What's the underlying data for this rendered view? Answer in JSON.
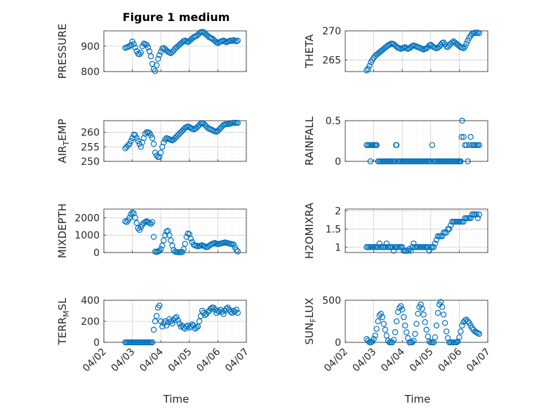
{
  "figure_title": "Figure 1 medium",
  "x_axis_label": "Time",
  "x_tick_labels": [
    "04/02",
    "04/03",
    "04/04",
    "04/05",
    "04/06",
    "04/07"
  ],
  "colors": {
    "marker": "#0072BD",
    "axis": "#262626",
    "grid": "#cfcfcf"
  },
  "chart_data": [
    {
      "type": "scatter",
      "ylabel": "PRESSURE",
      "ylim": [
        800,
        960
      ],
      "yticks": [
        800,
        900
      ],
      "xlim": [
        2,
        7
      ],
      "grid": true,
      "x": [
        2.75,
        2.8,
        2.85,
        2.9,
        2.95,
        3.0,
        3.05,
        3.1,
        3.15,
        3.2,
        3.25,
        3.3,
        3.35,
        3.4,
        3.45,
        3.5,
        3.55,
        3.6,
        3.65,
        3.7,
        3.75,
        3.8,
        3.85,
        3.9,
        3.95,
        4.0,
        4.05,
        4.1,
        4.15,
        4.2,
        4.25,
        4.3,
        4.35,
        4.4,
        4.45,
        4.5,
        4.55,
        4.6,
        4.65,
        4.7,
        4.75,
        4.8,
        4.85,
        4.9,
        4.95,
        5.0,
        5.05,
        5.1,
        5.15,
        5.2,
        5.25,
        5.3,
        5.35,
        5.4,
        5.45,
        5.5,
        5.55,
        5.6,
        5.65,
        5.7,
        5.75,
        5.8,
        5.85,
        5.9,
        5.95,
        6.0,
        6.05,
        6.1,
        6.15,
        6.2,
        6.25,
        6.3,
        6.35,
        6.4,
        6.45,
        6.5,
        6.55,
        6.6,
        6.65,
        6.7
      ],
      "y": [
        893,
        895,
        897,
        900,
        905,
        918,
        908,
        895,
        880,
        870,
        868,
        875,
        900,
        910,
        908,
        905,
        895,
        880,
        860,
        830,
        810,
        802,
        825,
        850,
        865,
        878,
        890,
        893,
        888,
        883,
        878,
        875,
        872,
        877,
        883,
        890,
        895,
        900,
        905,
        910,
        915,
        920,
        922,
        918,
        916,
        920,
        925,
        930,
        935,
        938,
        940,
        945,
        950,
        955,
        956,
        955,
        950,
        945,
        940,
        935,
        932,
        930,
        925,
        920,
        915,
        912,
        915,
        918,
        920,
        922,
        918,
        915,
        918,
        920,
        922,
        920,
        924,
        921,
        919,
        922
      ]
    },
    {
      "type": "scatter",
      "ylabel": "THETA",
      "ylim": [
        263,
        270
      ],
      "yticks": [
        265,
        270
      ],
      "xlim": [
        2,
        7
      ],
      "grid": true,
      "x": [
        2.75,
        2.8,
        2.85,
        2.9,
        2.95,
        3.0,
        3.05,
        3.1,
        3.15,
        3.2,
        3.25,
        3.3,
        3.35,
        3.4,
        3.45,
        3.5,
        3.55,
        3.6,
        3.65,
        3.7,
        3.75,
        3.8,
        3.85,
        3.9,
        3.95,
        4.0,
        4.05,
        4.1,
        4.15,
        4.2,
        4.25,
        4.3,
        4.35,
        4.4,
        4.45,
        4.5,
        4.55,
        4.6,
        4.65,
        4.7,
        4.75,
        4.8,
        4.85,
        4.9,
        4.95,
        5.0,
        5.05,
        5.1,
        5.15,
        5.2,
        5.25,
        5.3,
        5.35,
        5.4,
        5.45,
        5.5,
        5.55,
        5.6,
        5.65,
        5.7,
        5.75,
        5.8,
        5.85,
        5.9,
        5.95,
        6.0,
        6.05,
        6.1,
        6.15,
        6.2,
        6.25,
        6.3,
        6.35,
        6.4,
        6.45,
        6.5,
        6.55,
        6.6,
        6.65,
        6.7
      ],
      "y": [
        263.2,
        263.5,
        264,
        264.6,
        265,
        265.4,
        265.7,
        265.9,
        266.1,
        266.3,
        266.5,
        266.7,
        266.9,
        267.1,
        267.3,
        267.5,
        267.6,
        267.8,
        267.8,
        267.7,
        267.5,
        267.3,
        267.1,
        267.0,
        266.9,
        267.0,
        267.1,
        267.2,
        267.0,
        266.9,
        267.0,
        267.2,
        267.4,
        267.5,
        267.4,
        267.3,
        267.2,
        267.1,
        267.0,
        266.9,
        266.8,
        266.9,
        267.0,
        267.2,
        267.5,
        267.6,
        267.4,
        267.2,
        267.1,
        267.0,
        267.1,
        267.3,
        267.6,
        267.9,
        268.0,
        267.7,
        267.3,
        267.2,
        267.5,
        267.8,
        268.0,
        268.2,
        268.0,
        267.8,
        267.6,
        267.4,
        267.2,
        267.1,
        267.0,
        267.3,
        267.8,
        268.3,
        268.8,
        269.2,
        269.5,
        269.6,
        269.7,
        269.6,
        269.7,
        269.6
      ]
    },
    {
      "type": "scatter",
      "ylabel": "AIR_TEMP",
      "ylim": [
        250,
        264
      ],
      "yticks": [
        250,
        255,
        260
      ],
      "xlim": [
        2,
        7
      ],
      "grid": true,
      "x": [
        2.75,
        2.8,
        2.85,
        2.9,
        2.95,
        3.0,
        3.05,
        3.1,
        3.15,
        3.2,
        3.25,
        3.3,
        3.35,
        3.4,
        3.45,
        3.5,
        3.55,
        3.6,
        3.65,
        3.7,
        3.75,
        3.8,
        3.85,
        3.9,
        3.95,
        4.0,
        4.05,
        4.1,
        4.15,
        4.2,
        4.25,
        4.3,
        4.35,
        4.4,
        4.45,
        4.5,
        4.55,
        4.6,
        4.65,
        4.7,
        4.75,
        4.8,
        4.85,
        4.9,
        4.95,
        5.0,
        5.05,
        5.1,
        5.15,
        5.2,
        5.25,
        5.3,
        5.35,
        5.4,
        5.45,
        5.5,
        5.55,
        5.6,
        5.65,
        5.7,
        5.75,
        5.8,
        5.85,
        5.9,
        5.95,
        6.0,
        6.05,
        6.1,
        6.15,
        6.2,
        6.25,
        6.3,
        6.35,
        6.4,
        6.45,
        6.5,
        6.55,
        6.6,
        6.65,
        6.7
      ],
      "y": [
        254.5,
        255,
        255.5,
        256,
        257,
        258,
        259.2,
        259,
        258,
        257,
        256,
        255,
        256.5,
        258,
        259.5,
        260,
        260,
        259.8,
        259,
        258,
        256,
        253,
        252,
        251.5,
        251.5,
        253,
        255,
        256.5,
        257.5,
        258,
        257.8,
        257.6,
        257.4,
        257.2,
        257.5,
        258,
        258.5,
        259,
        259.5,
        260,
        260.5,
        261,
        261.5,
        261.8,
        262,
        261.8,
        261.5,
        261.2,
        261,
        261.2,
        261.5,
        262,
        262.5,
        263,
        263.2,
        263,
        262.5,
        262,
        261.5,
        261.2,
        261,
        260.8,
        260.5,
        260.3,
        260.2,
        260.5,
        261,
        261.5,
        262,
        262.5,
        262.7,
        262.8,
        262.8,
        262.9,
        263,
        263.2,
        263.3,
        263.2,
        263.3,
        263.2
      ]
    },
    {
      "type": "scatter",
      "ylabel": "RAINFALL",
      "ylim": [
        0,
        0.5
      ],
      "yticks": [
        0,
        0.5
      ],
      "xlim": [
        2,
        7
      ],
      "grid": true,
      "x": [
        2.75,
        2.8,
        2.85,
        2.88,
        2.9,
        2.95,
        3.0,
        3.05,
        3.08,
        3.1,
        3.15,
        3.2,
        3.25,
        3.3,
        3.35,
        3.4,
        3.45,
        3.5,
        3.55,
        3.6,
        3.65,
        3.7,
        3.75,
        3.78,
        3.8,
        3.85,
        3.9,
        3.95,
        4.0,
        4.05,
        4.1,
        4.15,
        4.2,
        4.25,
        4.3,
        4.35,
        4.4,
        4.45,
        4.5,
        4.55,
        4.6,
        4.65,
        4.7,
        4.75,
        4.8,
        4.85,
        4.9,
        4.95,
        5.0,
        5.05,
        5.1,
        5.15,
        5.2,
        5.25,
        5.3,
        5.35,
        5.4,
        5.45,
        5.5,
        5.55,
        5.6,
        5.65,
        5.7,
        5.75,
        5.8,
        5.85,
        5.9,
        5.95,
        6.0,
        6.02,
        6.05,
        6.08,
        6.1,
        6.15,
        6.2,
        6.25,
        6.3,
        6.35,
        6.4,
        6.45,
        6.5,
        6.55,
        6.6,
        6.65,
        6.7
      ],
      "y": [
        0.2,
        0.2,
        0.2,
        0.0,
        0.2,
        0.2,
        0.2,
        0.2,
        0.2,
        0.2,
        0.0,
        0.0,
        0.0,
        0.0,
        0.0,
        0.0,
        0.0,
        0.0,
        0.0,
        0.0,
        0.0,
        0.0,
        0.0,
        0.2,
        0.2,
        0.0,
        0.0,
        0.0,
        0.0,
        0.0,
        0.0,
        0.0,
        0.0,
        0.0,
        0.0,
        0.0,
        0.0,
        0.0,
        0.0,
        0.0,
        0.0,
        0.0,
        0.0,
        0.0,
        0.0,
        0.0,
        0.0,
        0.0,
        0.0,
        0.2,
        0.0,
        0.0,
        0.0,
        0.0,
        0.0,
        0.0,
        0.0,
        0.0,
        0.0,
        0.0,
        0.0,
        0.0,
        0.0,
        0.0,
        0.0,
        0.0,
        0.0,
        0.0,
        0.0,
        0.0,
        0.0,
        0.3,
        0.5,
        0.3,
        0.2,
        0.2,
        0.0,
        0.2,
        0.3,
        0.2,
        0.2,
        0.2,
        0.2,
        0.2,
        0.2
      ]
    },
    {
      "type": "scatter",
      "ylabel": "MIXDEPTH",
      "ylim": [
        0,
        2500
      ],
      "yticks": [
        0,
        1000,
        2000
      ],
      "xlim": [
        2,
        7
      ],
      "grid": true,
      "x": [
        2.75,
        2.8,
        2.85,
        2.9,
        2.95,
        3.0,
        3.05,
        3.1,
        3.15,
        3.2,
        3.25,
        3.3,
        3.35,
        3.4,
        3.45,
        3.5,
        3.55,
        3.6,
        3.65,
        3.7,
        3.75,
        3.8,
        3.85,
        3.9,
        3.95,
        4.0,
        4.05,
        4.1,
        4.15,
        4.2,
        4.25,
        4.3,
        4.35,
        4.4,
        4.45,
        4.5,
        4.55,
        4.6,
        4.65,
        4.7,
        4.75,
        4.8,
        4.85,
        4.9,
        4.95,
        5.0,
        5.05,
        5.1,
        5.15,
        5.2,
        5.25,
        5.3,
        5.35,
        5.4,
        5.45,
        5.5,
        5.55,
        5.6,
        5.65,
        5.7,
        5.75,
        5.8,
        5.85,
        5.9,
        5.95,
        6.0,
        6.05,
        6.1,
        6.15,
        6.2,
        6.25,
        6.3,
        6.35,
        6.4,
        6.45,
        6.5,
        6.55,
        6.6,
        6.65,
        6.7
      ],
      "y": [
        1800,
        1750,
        1850,
        2000,
        2200,
        2300,
        2250,
        2000,
        1700,
        1400,
        1300,
        1450,
        1600,
        1700,
        1750,
        1800,
        1750,
        1700,
        1650,
        1750,
        900,
        50,
        30,
        60,
        100,
        200,
        400,
        700,
        1000,
        1200,
        1250,
        1000,
        700,
        400,
        150,
        50,
        30,
        20,
        20,
        20,
        30,
        200,
        500,
        900,
        1100,
        1050,
        800,
        600,
        450,
        400,
        400,
        350,
        380,
        400,
        420,
        380,
        350,
        300,
        330,
        400,
        450,
        500,
        520,
        550,
        500,
        480,
        500,
        520,
        540,
        560,
        580,
        560,
        540,
        520,
        500,
        480,
        460,
        300,
        150,
        60
      ]
    },
    {
      "type": "scatter",
      "ylabel": "H2OMIXRA",
      "ylim": [
        0.85,
        2.05
      ],
      "yticks": [
        1,
        1.5,
        2
      ],
      "xlim": [
        2,
        7
      ],
      "grid": true,
      "x": [
        2.75,
        2.8,
        2.85,
        2.9,
        2.95,
        3.0,
        3.05,
        3.1,
        3.15,
        3.2,
        3.25,
        3.3,
        3.35,
        3.4,
        3.45,
        3.5,
        3.55,
        3.6,
        3.65,
        3.7,
        3.75,
        3.8,
        3.85,
        3.9,
        3.95,
        4.0,
        4.05,
        4.1,
        4.15,
        4.2,
        4.25,
        4.3,
        4.35,
        4.4,
        4.45,
        4.5,
        4.55,
        4.6,
        4.65,
        4.7,
        4.75,
        4.8,
        4.85,
        4.9,
        4.95,
        5.0,
        5.05,
        5.1,
        5.15,
        5.2,
        5.25,
        5.3,
        5.35,
        5.4,
        5.45,
        5.5,
        5.55,
        5.6,
        5.65,
        5.7,
        5.75,
        5.8,
        5.85,
        5.9,
        5.95,
        6.0,
        6.05,
        6.1,
        6.15,
        6.2,
        6.25,
        6.3,
        6.35,
        6.4,
        6.45,
        6.5,
        6.55,
        6.6,
        6.65,
        6.7
      ],
      "y": [
        1.0,
        1.0,
        1.0,
        1.0,
        1.0,
        1.0,
        1.0,
        1.0,
        1.0,
        1.1,
        1.0,
        1.0,
        1.0,
        1.0,
        1.1,
        1.0,
        1.0,
        1.0,
        1.0,
        0.9,
        1.0,
        1.0,
        1.0,
        1.0,
        1.0,
        1.0,
        0.9,
        0.9,
        0.9,
        0.9,
        0.95,
        0.9,
        1.0,
        1.1,
        1.0,
        1.0,
        1.0,
        1.0,
        1.0,
        1.0,
        1.0,
        1.0,
        1.0,
        1.0,
        0.9,
        1.0,
        1.0,
        1.0,
        1.1,
        1.2,
        1.3,
        1.3,
        1.3,
        1.3,
        1.4,
        1.4,
        1.4,
        1.5,
        1.5,
        1.6,
        1.7,
        1.7,
        1.7,
        1.7,
        1.7,
        1.7,
        1.7,
        1.7,
        1.7,
        1.8,
        1.8,
        1.8,
        1.8,
        1.8,
        1.9,
        1.9,
        1.9,
        1.9,
        1.8,
        1.9
      ]
    },
    {
      "type": "scatter",
      "ylabel": "TERR_MSL",
      "ylim": [
        0,
        400
      ],
      "yticks": [
        0,
        200,
        400
      ],
      "xlim": [
        2,
        7
      ],
      "grid": true,
      "x": [
        2.75,
        2.8,
        2.85,
        2.9,
        2.95,
        3.0,
        3.05,
        3.1,
        3.15,
        3.2,
        3.25,
        3.3,
        3.35,
        3.4,
        3.45,
        3.5,
        3.55,
        3.6,
        3.65,
        3.7,
        3.75,
        3.8,
        3.85,
        3.9,
        3.95,
        4.0,
        4.05,
        4.1,
        4.15,
        4.2,
        4.25,
        4.3,
        4.35,
        4.4,
        4.45,
        4.5,
        4.55,
        4.6,
        4.65,
        4.7,
        4.75,
        4.8,
        4.85,
        4.9,
        4.95,
        5.0,
        5.05,
        5.1,
        5.15,
        5.2,
        5.25,
        5.3,
        5.35,
        5.4,
        5.45,
        5.5,
        5.55,
        5.6,
        5.65,
        5.7,
        5.75,
        5.8,
        5.85,
        5.9,
        5.95,
        6.0,
        6.05,
        6.1,
        6.15,
        6.2,
        6.25,
        6.3,
        6.35,
        6.4,
        6.45,
        6.5,
        6.55,
        6.6,
        6.65,
        6.7
      ],
      "y": [
        0,
        0,
        0,
        0,
        0,
        0,
        0,
        0,
        0,
        0,
        0,
        0,
        0,
        0,
        0,
        0,
        0,
        0,
        0,
        0,
        120,
        200,
        250,
        330,
        350,
        200,
        150,
        180,
        200,
        160,
        190,
        220,
        200,
        180,
        210,
        230,
        240,
        210,
        180,
        150,
        160,
        140,
        130,
        150,
        160,
        140,
        150,
        170,
        160,
        130,
        140,
        150,
        200,
        250,
        300,
        280,
        260,
        270,
        290,
        300,
        320,
        330,
        330,
        310,
        280,
        300,
        290,
        310,
        290,
        270,
        300,
        320,
        330,
        310,
        290,
        280,
        300,
        290,
        310,
        280
      ]
    },
    {
      "type": "scatter",
      "ylabel": "SUN_FLUX",
      "ylim": [
        0,
        500
      ],
      "yticks": [
        0,
        500
      ],
      "xlim": [
        2,
        7
      ],
      "grid": true,
      "x": [
        2.75,
        2.8,
        2.85,
        2.9,
        2.95,
        3.0,
        3.05,
        3.1,
        3.15,
        3.2,
        3.25,
        3.3,
        3.35,
        3.4,
        3.45,
        3.5,
        3.55,
        3.6,
        3.65,
        3.7,
        3.75,
        3.8,
        3.85,
        3.9,
        3.95,
        4.0,
        4.05,
        4.1,
        4.15,
        4.2,
        4.25,
        4.3,
        4.35,
        4.4,
        4.45,
        4.5,
        4.55,
        4.6,
        4.65,
        4.7,
        4.75,
        4.8,
        4.85,
        4.9,
        4.95,
        5.0,
        5.05,
        5.1,
        5.15,
        5.2,
        5.25,
        5.3,
        5.35,
        5.4,
        5.45,
        5.5,
        5.55,
        5.6,
        5.65,
        5.7,
        5.75,
        5.8,
        5.85,
        5.9,
        5.95,
        6.0,
        6.05,
        6.1,
        6.15,
        6.2,
        6.25,
        6.3,
        6.35,
        6.4,
        6.45,
        6.5,
        6.55,
        6.6,
        6.65,
        6.7
      ],
      "y": [
        40,
        20,
        0,
        0,
        10,
        40,
        80,
        160,
        250,
        320,
        340,
        300,
        220,
        150,
        80,
        20,
        0,
        0,
        0,
        30,
        120,
        250,
        360,
        410,
        430,
        390,
        300,
        200,
        120,
        50,
        0,
        0,
        0,
        20,
        100,
        220,
        340,
        420,
        450,
        400,
        330,
        240,
        150,
        70,
        10,
        0,
        0,
        0,
        60,
        200,
        350,
        450,
        480,
        420,
        330,
        230,
        130,
        50,
        0,
        0,
        0,
        0,
        0,
        0,
        10,
        60,
        130,
        200,
        240,
        260,
        270,
        250,
        230,
        200,
        170,
        150,
        130,
        120,
        110,
        100
      ]
    }
  ]
}
